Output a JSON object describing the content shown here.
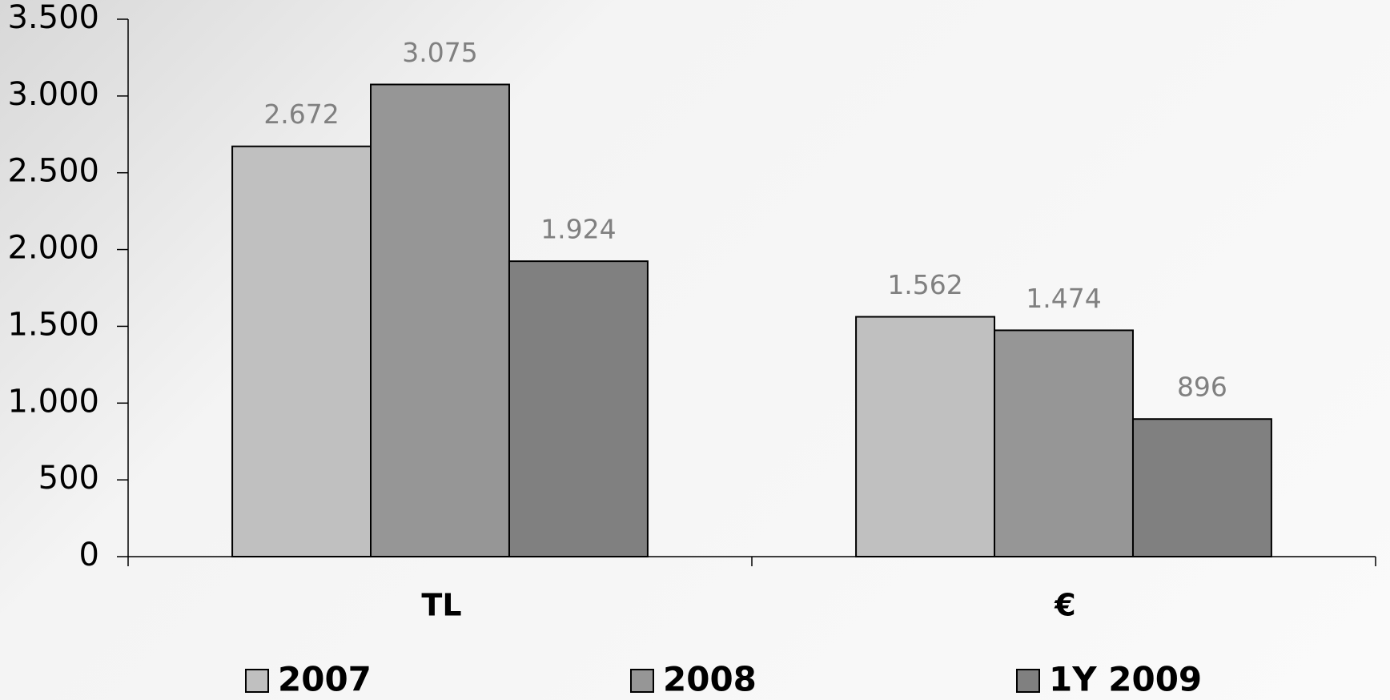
{
  "chart_data": {
    "type": "bar",
    "categories": [
      "TL",
      "€"
    ],
    "series": [
      {
        "name": "2007",
        "color": "#c0c0c0",
        "values": [
          2672,
          1562
        ],
        "value_labels": [
          "2.672",
          "1.562"
        ]
      },
      {
        "name": "2008",
        "color": "#969696",
        "values": [
          3075,
          1474
        ],
        "value_labels": [
          "3.075",
          "1.474"
        ]
      },
      {
        "name": "1Y 2009",
        "color": "#808080",
        "values": [
          1924,
          896
        ],
        "value_labels": [
          "1.924",
          "896"
        ]
      }
    ],
    "ylim": [
      0,
      3500
    ],
    "yticks": [
      0,
      500,
      {
        "value": 1000,
        "label": "1.000"
      },
      {
        "value": 1500,
        "label": "1.500"
      },
      {
        "value": 2000,
        "label": "2.000"
      },
      {
        "value": 2500,
        "label": "2.500"
      },
      {
        "value": 3000,
        "label": "3.000"
      },
      {
        "value": 3500,
        "label": "3.500"
      }
    ],
    "grid": false,
    "legend": "bottom"
  }
}
